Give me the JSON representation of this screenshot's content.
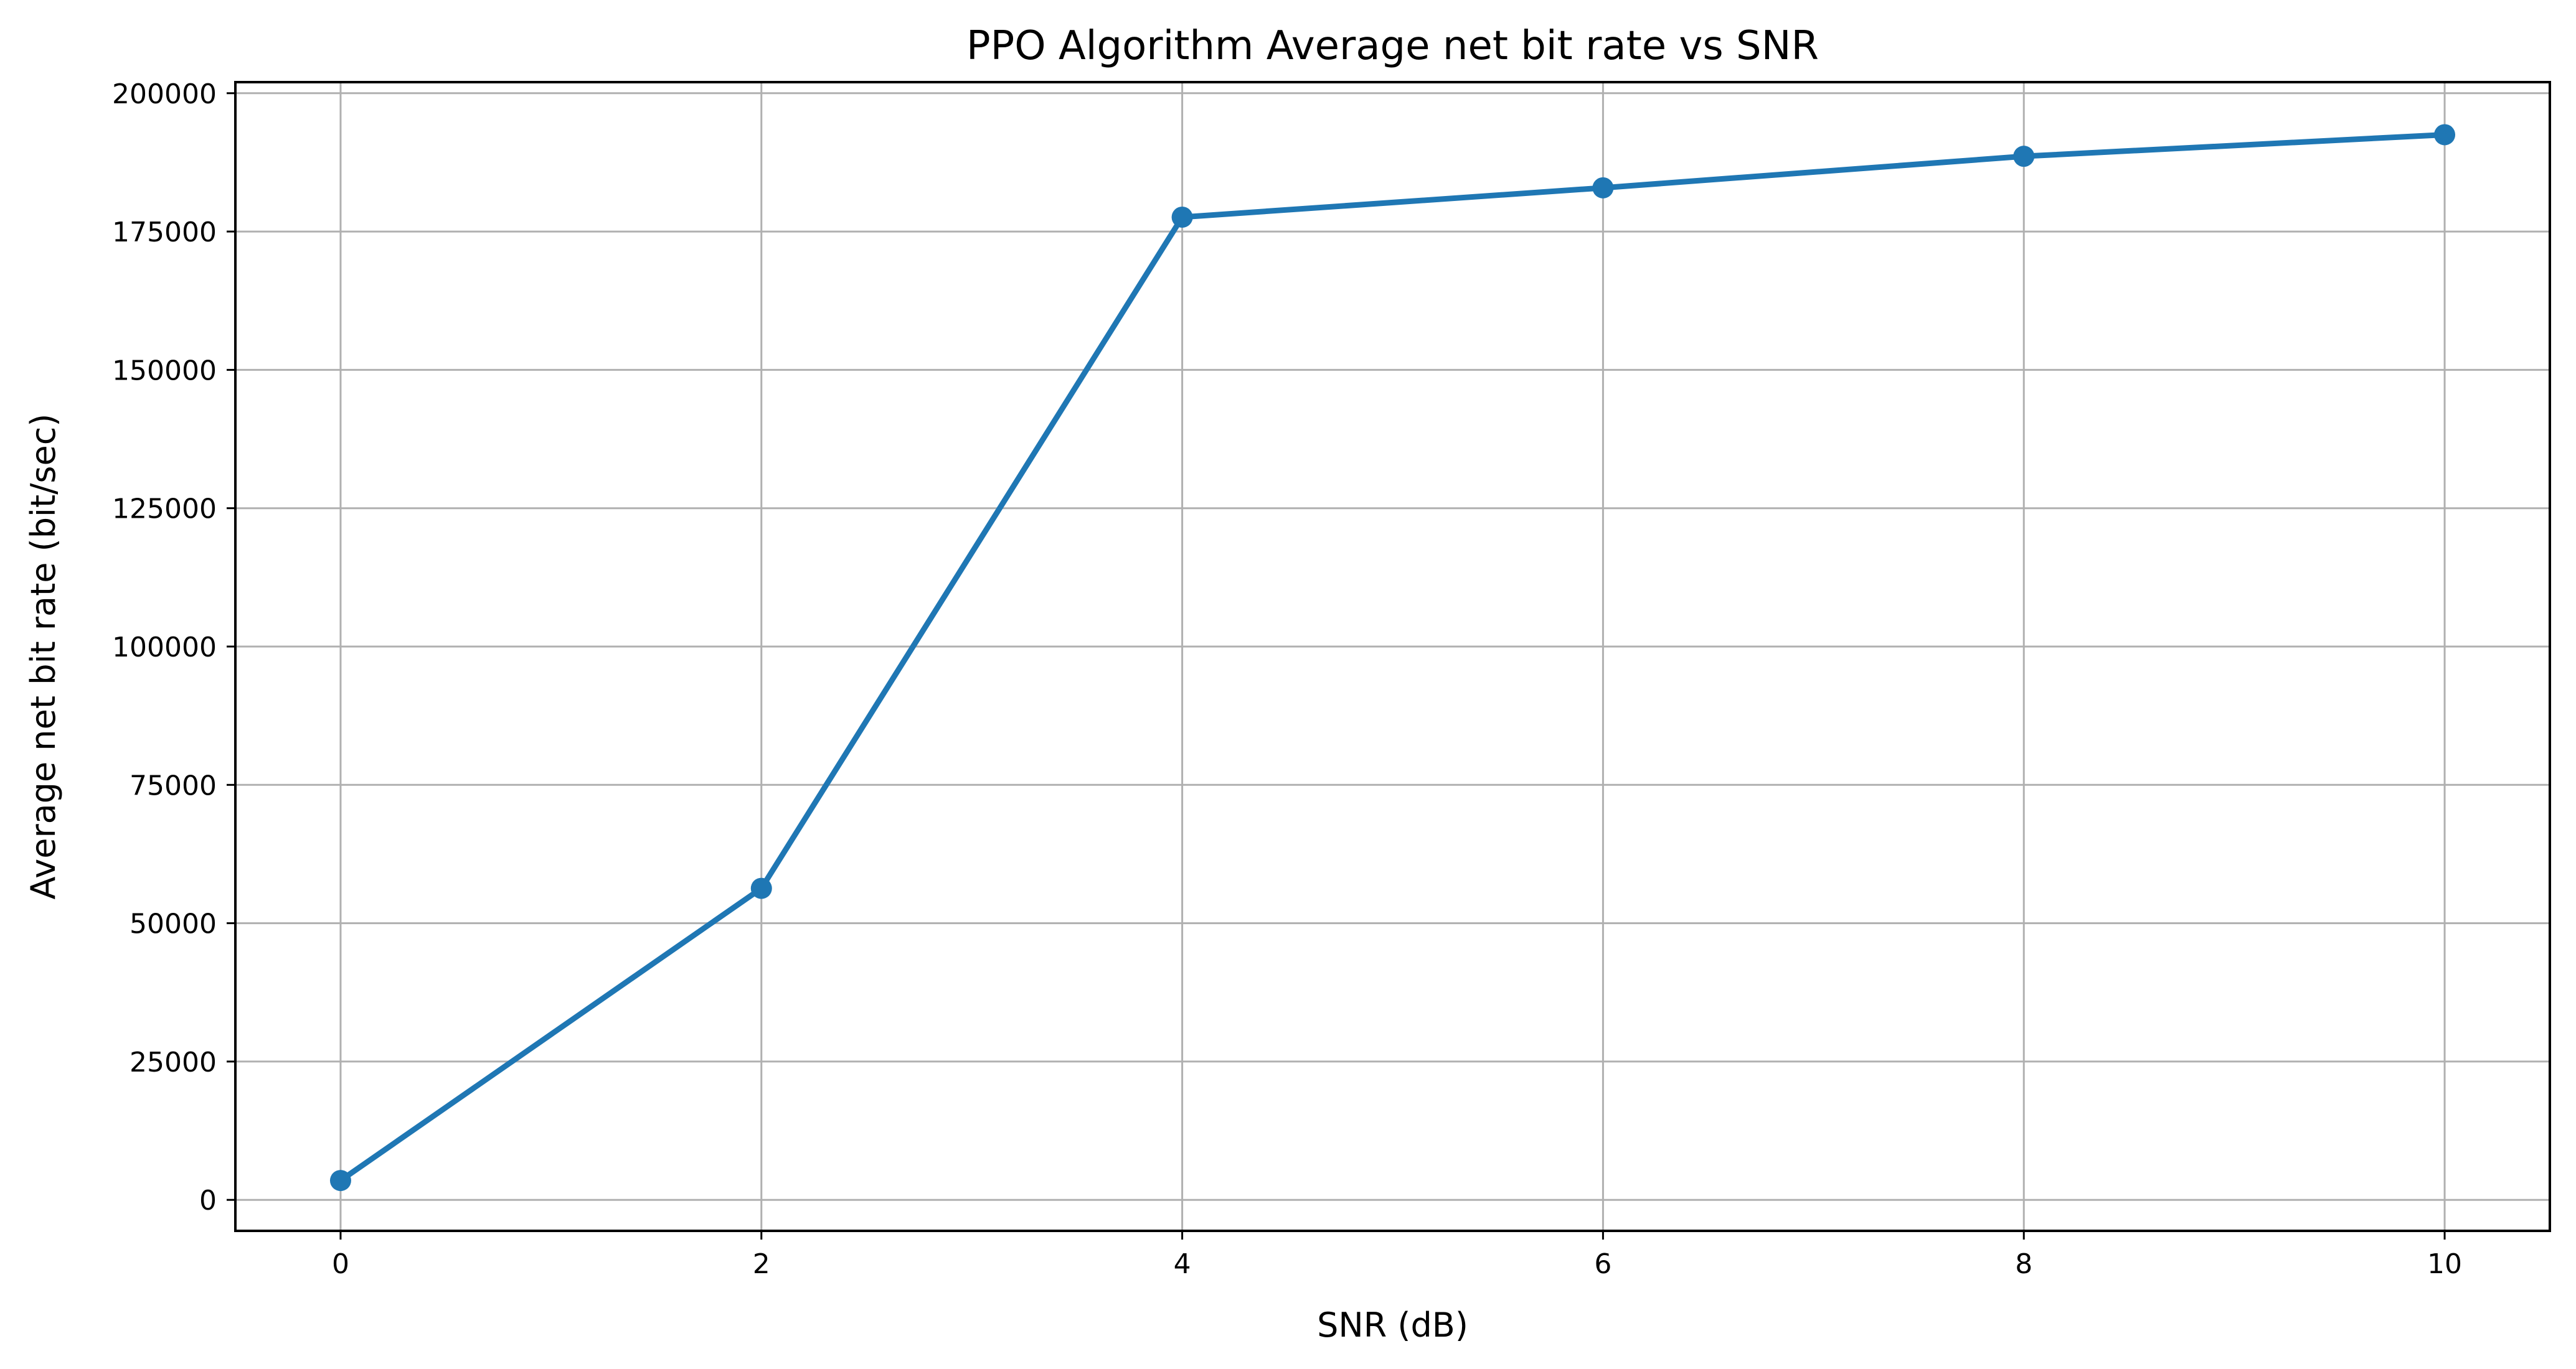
{
  "chart_data": {
    "type": "line",
    "title": "PPO Algorithm Average net bit rate vs SNR",
    "xlabel": "SNR (dB)",
    "ylabel": "Average net bit rate (bit/sec)",
    "x": [
      0,
      2,
      4,
      6,
      8,
      10
    ],
    "series": [
      {
        "values": [
          3500,
          56300,
          177600,
          182900,
          188600,
          192500
        ],
        "color": "#1f77b4",
        "marker": "circle"
      }
    ],
    "xlim": [
      -0.5,
      10.5
    ],
    "ylim": [
      -5600,
      202000
    ],
    "xticks": [
      0,
      2,
      4,
      6,
      8,
      10
    ],
    "yticks": [
      0,
      25000,
      50000,
      75000,
      100000,
      125000,
      150000,
      175000,
      200000
    ],
    "grid": true
  }
}
